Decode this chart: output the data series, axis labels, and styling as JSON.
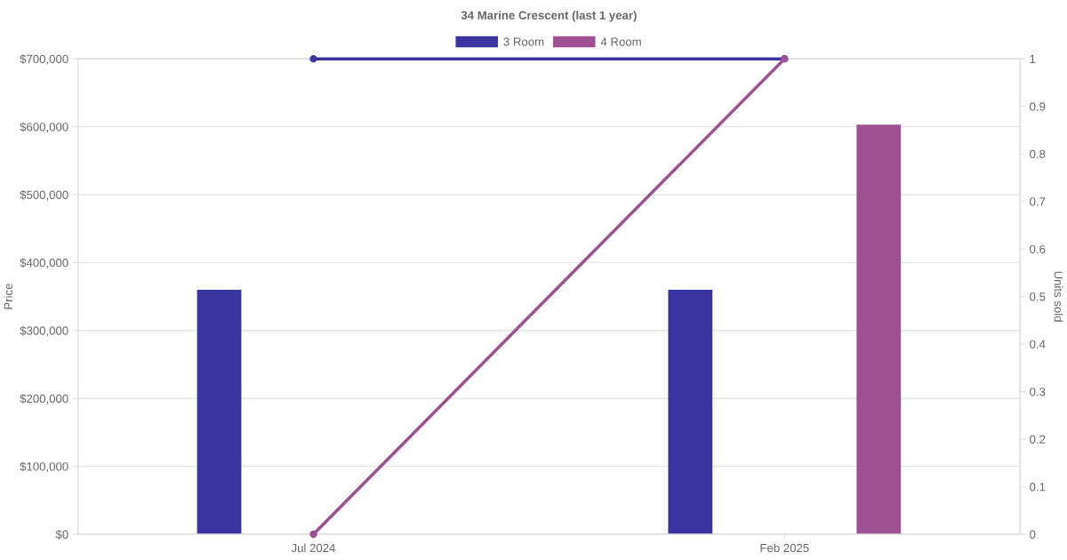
{
  "chart_data": {
    "type": "bar",
    "title": "34 Marine Crescent (last 1 year)",
    "ylabel": "Price",
    "y2label": "Units sold",
    "categories": [
      "Jul 2024",
      "Feb 2025"
    ],
    "series": [
      {
        "name": "3 Room",
        "color": "#3a35a0",
        "values": [
          360000,
          360000
        ]
      },
      {
        "name": "4 Room",
        "color": "#9e5092",
        "values": [
          0,
          603000
        ]
      },
      {
        "type": "line",
        "axis": "y2",
        "color": "#3a35a0",
        "values": [
          1,
          1
        ],
        "marker": "circle"
      },
      {
        "type": "line",
        "axis": "y2",
        "color": "#9e5092",
        "values": [
          0,
          1
        ],
        "marker": "circle"
      }
    ],
    "ylim": [
      0,
      700000
    ],
    "yticks": [
      {
        "value": 0,
        "label": "$0"
      },
      {
        "value": 100000,
        "label": "$100,000"
      },
      {
        "value": 200000,
        "label": "$200,000"
      },
      {
        "value": 300000,
        "label": "$300,000"
      },
      {
        "value": 400000,
        "label": "$400,000"
      },
      {
        "value": 500000,
        "label": "$500,000"
      },
      {
        "value": 600000,
        "label": "$600,000"
      },
      {
        "value": 700000,
        "label": "$700,000"
      }
    ],
    "y2lim": [
      0,
      1
    ],
    "y2ticks": [
      0,
      0.1,
      0.2,
      0.3,
      0.4,
      0.5,
      0.6,
      0.7,
      0.8,
      0.9,
      1
    ],
    "grid": "y",
    "legend": "top"
  }
}
